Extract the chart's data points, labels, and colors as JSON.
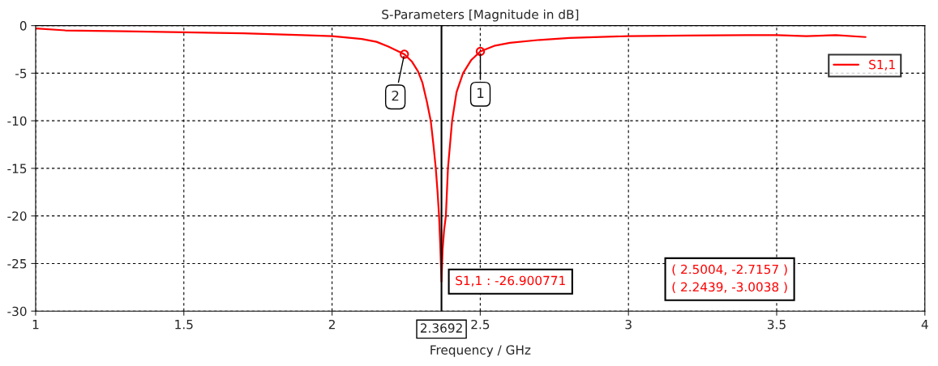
{
  "chart_data": {
    "type": "line",
    "title": "S-Parameters [Magnitude in dB]",
    "xlabel": "Frequency / GHz",
    "series": [
      {
        "name": "S1,1",
        "color": "#ff0000",
        "x": [
          1.0,
          1.1,
          1.3,
          1.5,
          1.7,
          1.9,
          2.0,
          2.1,
          2.15,
          2.19,
          2.2439,
          2.27,
          2.29,
          2.305,
          2.32,
          2.333,
          2.342,
          2.35,
          2.356,
          2.361,
          2.365,
          2.3692,
          2.373,
          2.378,
          2.384,
          2.391,
          2.398,
          2.405,
          2.42,
          2.442,
          2.47,
          2.5004,
          2.55,
          2.6,
          2.7,
          2.8,
          3.0,
          3.2,
          3.4,
          3.5,
          3.6,
          3.7,
          3.8
        ],
        "values": [
          -0.3,
          -0.5,
          -0.6,
          -0.7,
          -0.8,
          -1.0,
          -1.1,
          -1.4,
          -1.7,
          -2.2,
          -3.0038,
          -3.8,
          -4.8,
          -6.0,
          -8.0,
          -10.0,
          -12.5,
          -15.0,
          -17.5,
          -20.0,
          -23.0,
          -26.900771,
          -23.5,
          -21.5,
          -20.0,
          -15.0,
          -12.5,
          -10.0,
          -7.0,
          -5.0,
          -3.6,
          -2.7157,
          -2.1,
          -1.8,
          -1.5,
          -1.3,
          -1.1,
          -1.05,
          -1.0,
          -1.0,
          -1.1,
          -1.0,
          -1.2
        ]
      },
      {
        "type": "scatter",
        "color": "#ff0000",
        "marker": "circle",
        "x": [
          2.5004,
          2.2439
        ],
        "values": [
          -2.7157,
          -3.0038
        ]
      }
    ],
    "xlim": [
      1,
      4
    ],
    "ylim": [
      -30,
      0
    ],
    "xticks": [
      1,
      1.5,
      2,
      2.5,
      3,
      3.5,
      4
    ],
    "yticks": [
      -30,
      -25,
      -20,
      -15,
      -10,
      -5,
      0
    ],
    "grid": true,
    "legend": "top right",
    "line_style": "solid",
    "ref_lines": [
      {
        "axis": "x",
        "value": 2.3692,
        "label": "2.3692",
        "color": "#000000"
      }
    ],
    "annotations": [
      {
        "text": "S1,1 : -26.900771",
        "x": 2.3692,
        "y": -26.900771
      },
      {
        "text": "1",
        "x": 2.5004,
        "y": -2.7157
      },
      {
        "text": "2",
        "x": 2.2439,
        "y": -3.0038
      },
      "( 2.5004, -2.7157 )",
      "( 2.2439, -3.0038 )"
    ]
  }
}
